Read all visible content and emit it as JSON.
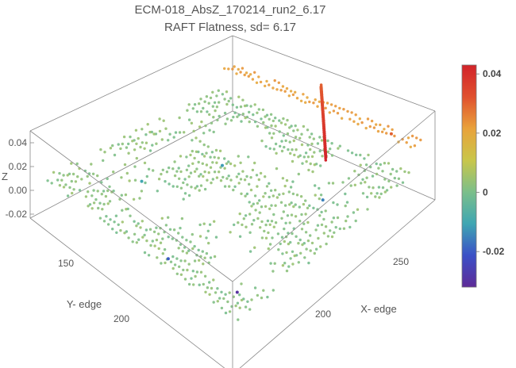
{
  "chart_data": {
    "type": "scatter",
    "title": "ECM-018_AbsZ_170214_run2_6.17",
    "subtitle": "RAFT Flatness, sd= 6.17",
    "xlabel": "X- edge",
    "ylabel": "Y- edge",
    "zlabel": "Z",
    "x_ticks": [
      "200",
      "250"
    ],
    "y_ticks": [
      "150",
      "200"
    ],
    "z_ticks": [
      "0.04",
      "0.02",
      "0.00",
      "-0.02"
    ],
    "xlim": [
      130,
      290
    ],
    "ylim": [
      120,
      230
    ],
    "zlim": [
      -0.03,
      0.045
    ],
    "colorbar": {
      "ticks": [
        "0.04",
        "0.02",
        "0",
        "-0.02"
      ],
      "range": [
        -0.032,
        0.043
      ],
      "colormap": [
        "#5e2b97",
        "#3b50c7",
        "#3fa6b2",
        "#7bbf8a",
        "#c9c64a",
        "#e9a23b",
        "#e0502e",
        "#d2232a"
      ]
    },
    "series_description_hidden": false,
    "grid_pattern": {
      "base_z": 0.002,
      "ridge": {
        "x0": 200,
        "y0": 120,
        "x1": 262,
        "y1": 160,
        "z_start": 0.03,
        "z_end": 0.043
      },
      "back_band_z": 0.022,
      "outliers": [
        {
          "x": 250,
          "y": 200,
          "z": -0.03
        },
        {
          "x": 180,
          "y": 160,
          "z": -0.012
        },
        {
          "x": 160,
          "y": 190,
          "z": -0.01
        },
        {
          "x": 210,
          "y": 210,
          "z": -0.02
        },
        {
          "x": 270,
          "y": 130,
          "z": 0.03
        },
        {
          "x": 245,
          "y": 150,
          "z": -0.015
        }
      ]
    }
  }
}
